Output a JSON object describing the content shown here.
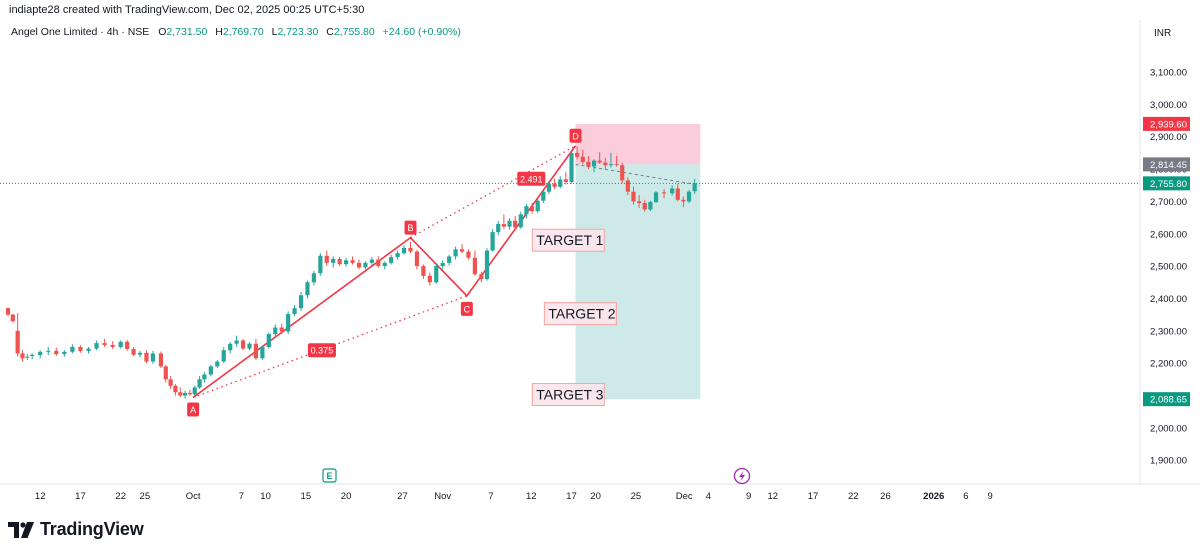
{
  "credit": "indiapte28 created with TradingView.com, Dec 02, 2025 00:25 UTC+5:30",
  "legend": {
    "symbol": "Angel One Limited · 4h · NSE",
    "o_label": "O",
    "o": "2,731.50",
    "h_label": "H",
    "h": "2,769.70",
    "l_label": "L",
    "l": "2,723.30",
    "c_label": "C",
    "c": "2,755.80",
    "change": "+24.60 (+0.90%)"
  },
  "currency": "INR",
  "brand": "TradingView",
  "colors": {
    "up": "#26a69a",
    "down": "#ef5350",
    "pattern": "#f23645",
    "profit_zone": "#b2dfdb",
    "loss_zone": "#f8bbd0",
    "stop_badge": "#f23645",
    "entry_badge": "#787b86",
    "price_badge": "#089981",
    "target_badge": "#089981"
  },
  "chart_data": {
    "type": "candlestick",
    "y_axis_labels": [
      "3,100.00",
      "3,000.00",
      "2,900.00",
      "2,800.00",
      "2,700.00",
      "2,600.00",
      "2,500.00",
      "2,400.00",
      "2,300.00",
      "2,200.00",
      "2,100.00",
      "2,000.00",
      "1,900.00"
    ],
    "y_ticks": [
      3100,
      3000,
      2900,
      2800,
      2700,
      2600,
      2500,
      2400,
      2300,
      2200,
      2100,
      2000,
      1900
    ],
    "x_ticks": [
      {
        "label": "12",
        "day": 12
      },
      {
        "label": "17",
        "day": 17
      },
      {
        "label": "22",
        "day": 22
      },
      {
        "label": "25",
        "day": 25
      },
      {
        "label": "Oct",
        "day": 31
      },
      {
        "label": "7",
        "day": 37
      },
      {
        "label": "10",
        "day": 40
      },
      {
        "label": "15",
        "day": 45
      },
      {
        "label": "20",
        "day": 50
      },
      {
        "label": "27",
        "day": 57
      },
      {
        "label": "Nov",
        "day": 62
      },
      {
        "label": "7",
        "day": 68
      },
      {
        "label": "12",
        "day": 73
      },
      {
        "label": "17",
        "day": 78
      },
      {
        "label": "20",
        "day": 81
      },
      {
        "label": "25",
        "day": 86
      },
      {
        "label": "Dec",
        "day": 92
      },
      {
        "label": "4",
        "day": 95
      },
      {
        "label": "9",
        "day": 100
      },
      {
        "label": "12",
        "day": 103
      },
      {
        "label": "17",
        "day": 108
      },
      {
        "label": "22",
        "day": 113
      },
      {
        "label": "26",
        "day": 117
      },
      {
        "label": "2026",
        "day": 123
      },
      {
        "label": "6",
        "day": 127
      },
      {
        "label": "9",
        "day": 130
      }
    ],
    "candles": [
      [
        8,
        2370,
        2372,
        2345,
        2350
      ],
      [
        8.6,
        2350,
        2352,
        2325,
        2330
      ],
      [
        9.2,
        2300,
        2355,
        2220,
        2230
      ],
      [
        9.8,
        2230,
        2240,
        2205,
        2215
      ],
      [
        10.4,
        2218,
        2228,
        2210,
        2220
      ],
      [
        11,
        2222,
        2230,
        2212,
        2226
      ],
      [
        12,
        2225,
        2240,
        2215,
        2235
      ],
      [
        13,
        2235,
        2250,
        2225,
        2238
      ],
      [
        14,
        2238,
        2248,
        2222,
        2228
      ],
      [
        15,
        2228,
        2240,
        2220,
        2235
      ],
      [
        16,
        2235,
        2258,
        2230,
        2250
      ],
      [
        17,
        2250,
        2255,
        2232,
        2238
      ],
      [
        18,
        2238,
        2250,
        2230,
        2245
      ],
      [
        19,
        2245,
        2270,
        2240,
        2262
      ],
      [
        20,
        2262,
        2275,
        2250,
        2256
      ],
      [
        21,
        2256,
        2268,
        2244,
        2250
      ],
      [
        22,
        2250,
        2270,
        2245,
        2266
      ],
      [
        22.8,
        2266,
        2272,
        2238,
        2244
      ],
      [
        23.6,
        2244,
        2250,
        2222,
        2226
      ],
      [
        24.4,
        2226,
        2238,
        2218,
        2232
      ],
      [
        25.2,
        2232,
        2240,
        2200,
        2205
      ],
      [
        26,
        2205,
        2238,
        2198,
        2230
      ],
      [
        27,
        2230,
        2236,
        2185,
        2190
      ],
      [
        27.6,
        2190,
        2195,
        2140,
        2150
      ],
      [
        28.2,
        2150,
        2160,
        2120,
        2130
      ],
      [
        28.8,
        2130,
        2135,
        2100,
        2110
      ],
      [
        29.4,
        2110,
        2125,
        2095,
        2100
      ],
      [
        30,
        2100,
        2115,
        2090,
        2108
      ],
      [
        30.6,
        2108,
        2118,
        2098,
        2104
      ],
      [
        31.2,
        2104,
        2130,
        2100,
        2125
      ],
      [
        31.8,
        2125,
        2160,
        2120,
        2150
      ],
      [
        32.4,
        2150,
        2172,
        2140,
        2165
      ],
      [
        33.2,
        2165,
        2195,
        2160,
        2190
      ],
      [
        34,
        2190,
        2210,
        2185,
        2205
      ],
      [
        34.8,
        2205,
        2250,
        2200,
        2240
      ],
      [
        35.6,
        2240,
        2265,
        2230,
        2260
      ],
      [
        36.4,
        2260,
        2285,
        2250,
        2270
      ],
      [
        37.2,
        2270,
        2275,
        2240,
        2245
      ],
      [
        38,
        2245,
        2265,
        2240,
        2260
      ],
      [
        38.8,
        2260,
        2275,
        2210,
        2215
      ],
      [
        39.6,
        2215,
        2255,
        2210,
        2250
      ],
      [
        40.4,
        2250,
        2295,
        2245,
        2290
      ],
      [
        41.2,
        2290,
        2320,
        2280,
        2310
      ],
      [
        42,
        2310,
        2322,
        2290,
        2298
      ],
      [
        42.8,
        2298,
        2360,
        2290,
        2352
      ],
      [
        43.6,
        2352,
        2380,
        2345,
        2370
      ],
      [
        44.4,
        2370,
        2420,
        2362,
        2410
      ],
      [
        45.2,
        2410,
        2455,
        2400,
        2450
      ],
      [
        46,
        2450,
        2485,
        2440,
        2478
      ],
      [
        46.8,
        2478,
        2540,
        2470,
        2532
      ],
      [
        47.6,
        2532,
        2548,
        2500,
        2510
      ],
      [
        48.4,
        2510,
        2530,
        2495,
        2522
      ],
      [
        49.2,
        2522,
        2528,
        2500,
        2506
      ],
      [
        50,
        2506,
        2525,
        2498,
        2518
      ],
      [
        50.8,
        2518,
        2530,
        2505,
        2510
      ],
      [
        51.6,
        2510,
        2520,
        2490,
        2496
      ],
      [
        52.4,
        2496,
        2515,
        2490,
        2510
      ],
      [
        53.2,
        2510,
        2528,
        2500,
        2520
      ],
      [
        54,
        2520,
        2530,
        2495,
        2500
      ],
      [
        54.8,
        2500,
        2515,
        2490,
        2510
      ],
      [
        55.6,
        2510,
        2535,
        2505,
        2528
      ],
      [
        56.4,
        2528,
        2548,
        2520,
        2540
      ],
      [
        57.2,
        2540,
        2565,
        2535,
        2556
      ],
      [
        58,
        2556,
        2575,
        2540,
        2545
      ],
      [
        58.8,
        2545,
        2550,
        2490,
        2500
      ],
      [
        59.6,
        2500,
        2505,
        2460,
        2470
      ],
      [
        60.4,
        2470,
        2480,
        2440,
        2450
      ],
      [
        61.2,
        2450,
        2510,
        2445,
        2500
      ],
      [
        62,
        2500,
        2518,
        2490,
        2510
      ],
      [
        62.8,
        2510,
        2535,
        2502,
        2530
      ],
      [
        63.6,
        2530,
        2560,
        2520,
        2552
      ],
      [
        64.4,
        2552,
        2568,
        2540,
        2545
      ],
      [
        65.2,
        2545,
        2552,
        2520,
        2526
      ],
      [
        66,
        2526,
        2548,
        2470,
        2475
      ],
      [
        66.8,
        2475,
        2482,
        2450,
        2460
      ],
      [
        67.5,
        2460,
        2555,
        2455,
        2548
      ],
      [
        68.2,
        2548,
        2615,
        2545,
        2605
      ],
      [
        68.9,
        2605,
        2640,
        2595,
        2630
      ],
      [
        69.6,
        2630,
        2660,
        2615,
        2622
      ],
      [
        70.3,
        2622,
        2648,
        2612,
        2640
      ],
      [
        71,
        2640,
        2655,
        2612,
        2620
      ],
      [
        71.7,
        2620,
        2668,
        2615,
        2660
      ],
      [
        72.4,
        2660,
        2692,
        2648,
        2685
      ],
      [
        73.1,
        2685,
        2695,
        2662,
        2670
      ],
      [
        73.8,
        2670,
        2710,
        2665,
        2702
      ],
      [
        74.5,
        2702,
        2738,
        2695,
        2730
      ],
      [
        75.2,
        2730,
        2762,
        2722,
        2755
      ],
      [
        75.9,
        2755,
        2770,
        2738,
        2745
      ],
      [
        76.6,
        2745,
        2778,
        2740,
        2768
      ],
      [
        77.3,
        2768,
        2790,
        2752,
        2760
      ],
      [
        78,
        2760,
        2860,
        2755,
        2850
      ],
      [
        78.7,
        2850,
        2870,
        2830,
        2838
      ],
      [
        79.4,
        2838,
        2860,
        2815,
        2822
      ],
      [
        80.1,
        2822,
        2840,
        2800,
        2808
      ],
      [
        80.8,
        2808,
        2830,
        2790,
        2826
      ],
      [
        81.5,
        2826,
        2852,
        2816,
        2820
      ],
      [
        82.2,
        2820,
        2835,
        2800,
        2812
      ],
      [
        82.9,
        2812,
        2850,
        2805,
        2815
      ],
      [
        83.6,
        2815,
        2840,
        2808,
        2812
      ],
      [
        84.3,
        2812,
        2820,
        2755,
        2765
      ],
      [
        85,
        2765,
        2775,
        2720,
        2730
      ],
      [
        85.7,
        2730,
        2745,
        2690,
        2700
      ],
      [
        86.4,
        2700,
        2720,
        2680,
        2695
      ],
      [
        87.1,
        2695,
        2705,
        2668,
        2675
      ],
      [
        87.8,
        2675,
        2702,
        2670,
        2698
      ],
      [
        88.5,
        2698,
        2732,
        2695,
        2728
      ],
      [
        89.5,
        2728,
        2738,
        2710,
        2725
      ],
      [
        90.5,
        2725,
        2750,
        2718,
        2740
      ],
      [
        91.2,
        2740,
        2755,
        2700,
        2705
      ],
      [
        91.9,
        2705,
        2715,
        2682,
        2700
      ],
      [
        92.6,
        2700,
        2735,
        2695,
        2730
      ],
      [
        93.3,
        2731.5,
        2769.7,
        2723.3,
        2755.8
      ]
    ],
    "harmonic": {
      "A": [
        31,
        2094
      ],
      "B": [
        58,
        2588
      ],
      "C": [
        65,
        2408
      ],
      "D": [
        78.5,
        2872
      ],
      "ratios": [
        {
          "text": "0.375",
          "day": 47,
          "price": 2240
        },
        {
          "text": "2.491",
          "day": 73,
          "price": 2770
        }
      ]
    },
    "trade": {
      "entry": 2814.45,
      "stop": 2939.6,
      "target": 2088.65,
      "start_day": 78.5,
      "end_day": 94,
      "entry_label": "2,814.45",
      "stop_label": "2,939.60",
      "target_label": "2,088.65",
      "target_notes": [
        {
          "text": "TARGET 1",
          "day": 73.5,
          "price": 2580
        },
        {
          "text": "TARGET 2",
          "day": 75,
          "price": 2353
        },
        {
          "text": "TARGET 3",
          "day": 73.5,
          "price": 2103
        }
      ]
    },
    "last_price": 2755.8,
    "last_price_label": "2,755.80"
  }
}
